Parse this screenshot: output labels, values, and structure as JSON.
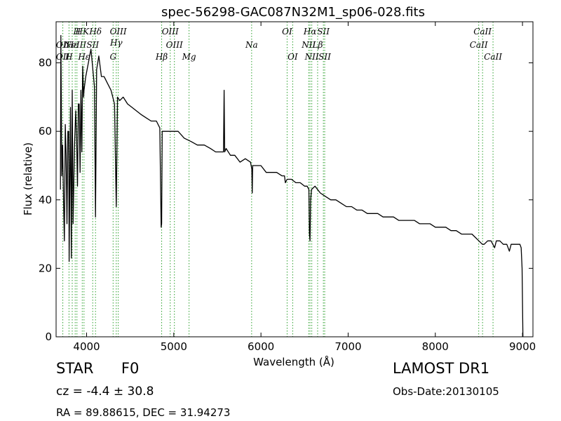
{
  "chart_data": {
    "type": "line",
    "title": "spec-56298-GAC087N32M1_sp06-028.fits",
    "xlabel": "Wavelength (Å)",
    "ylabel": "Flux (relative)",
    "xlim": [
      3650,
      9120
    ],
    "ylim": [
      0,
      92
    ],
    "xticks": [
      4000,
      5000,
      6000,
      7000,
      8000,
      9000
    ],
    "yticks": [
      0,
      20,
      40,
      60,
      80
    ],
    "grid": false,
    "series": [
      {
        "color": "#000000",
        "x": [
          3700,
          3705,
          3715,
          3725,
          3735,
          3745,
          3755,
          3765,
          3775,
          3785,
          3795,
          3800,
          3815,
          3825,
          3835,
          3845,
          3860,
          3875,
          3885,
          3895,
          3905,
          3915,
          3925,
          3935,
          3945,
          3955,
          3965,
          3970,
          3990,
          4020,
          4050,
          4090,
          4102,
          4115,
          4140,
          4170,
          4200,
          4240,
          4280,
          4320,
          4340,
          4355,
          4380,
          4420,
          4470,
          4520,
          4570,
          4620,
          4680,
          4740,
          4800,
          4840,
          4855,
          4861,
          4867,
          4880,
          4920,
          4980,
          5050,
          5120,
          5200,
          5270,
          5350,
          5420,
          5480,
          5540,
          5570,
          5577,
          5584,
          5600,
          5650,
          5700,
          5760,
          5820,
          5880,
          5895,
          5900,
          5905,
          5940,
          6000,
          6060,
          6120,
          6180,
          6240,
          6270,
          6280,
          6300,
          6350,
          6400,
          6450,
          6500,
          6530,
          6550,
          6556,
          6563,
          6570,
          6580,
          6620,
          6680,
          6740,
          6800,
          6860,
          6920,
          6980,
          7040,
          7100,
          7160,
          7220,
          7280,
          7340,
          7400,
          7460,
          7520,
          7580,
          7640,
          7700,
          7760,
          7820,
          7880,
          7940,
          8000,
          8060,
          8120,
          8180,
          8240,
          8300,
          8360,
          8420,
          8460,
          8500,
          8540,
          8560,
          8600,
          8640,
          8680,
          8700,
          8740,
          8780,
          8820,
          8850,
          8870,
          8900,
          8940,
          8970,
          8985,
          8995,
          9005
        ],
        "y": [
          43,
          88,
          47,
          56,
          40,
          28,
          62,
          53,
          33,
          60,
          60,
          22,
          67,
          23,
          72,
          33,
          55,
          66,
          58,
          44,
          68,
          68,
          48,
          72,
          54,
          79,
          70,
          72,
          76,
          80,
          84,
          73,
          35,
          78,
          82,
          76,
          76,
          74,
          72,
          68,
          38,
          70,
          69,
          70,
          68,
          67,
          66,
          65,
          64,
          63,
          63,
          61,
          32,
          33,
          60,
          60,
          60,
          60,
          60,
          58,
          57,
          56,
          56,
          55,
          54,
          54,
          54,
          72,
          54,
          55,
          53,
          53,
          51,
          52,
          51,
          49,
          42,
          50,
          50,
          50,
          48,
          48,
          48,
          47,
          47,
          45,
          46,
          46,
          45,
          45,
          44,
          44,
          43,
          30,
          28,
          40,
          43,
          44,
          42,
          41,
          40,
          40,
          39,
          38,
          38,
          37,
          37,
          36,
          36,
          36,
          35,
          35,
          35,
          34,
          34,
          34,
          34,
          33,
          33,
          33,
          32,
          32,
          32,
          31,
          31,
          30,
          30,
          30,
          29,
          28,
          27,
          27,
          28,
          28,
          26,
          28,
          28,
          27,
          27,
          25,
          27,
          27,
          27,
          27,
          26,
          20,
          0
        ]
      }
    ],
    "line_markers": [
      {
        "label": "H",
        "x": 3889,
        "row": 0
      },
      {
        "label": "HK",
        "x": 3950,
        "row": 0
      },
      {
        "label": "Hδ",
        "x": 4102,
        "row": 0
      },
      {
        "label": "OIII",
        "x": 4363,
        "row": 0
      },
      {
        "label": "OIII",
        "x": 4959,
        "row": 0
      },
      {
        "label": "OI",
        "x": 6300,
        "row": 0
      },
      {
        "label": "Hα",
        "x": 6563,
        "row": 0
      },
      {
        "label": "SII",
        "x": 6716,
        "row": 0
      },
      {
        "label": "CaII",
        "x": 8542,
        "row": 0
      },
      {
        "label": "Hγ",
        "x": 4340,
        "row": 1
      },
      {
        "label": "OIII",
        "x": 5007,
        "row": 2
      },
      {
        "label": "Na",
        "x": 5893,
        "row": 2
      },
      {
        "label": "NII",
        "x": 6548,
        "row": 2
      },
      {
        "label": "Lβ",
        "x": 6650,
        "row": 2
      },
      {
        "label": "CaII",
        "x": 8498,
        "row": 2
      },
      {
        "label": "OII",
        "x": 3727,
        "row": 2
      },
      {
        "label": "Hε",
        "x": 3835,
        "row": 2
      },
      {
        "label": "NeIII",
        "x": 3869,
        "row": 2
      },
      {
        "label": "SII",
        "x": 4070,
        "row": 2
      },
      {
        "label": "OII",
        "x": 3727,
        "row": 3
      },
      {
        "label": "H",
        "x": 3798,
        "row": 3
      },
      {
        "label": "Hε",
        "x": 3970,
        "row": 3
      },
      {
        "label": "G",
        "x": 4304,
        "row": 3
      },
      {
        "label": "Hβ",
        "x": 4861,
        "row": 3
      },
      {
        "label": "Mg",
        "x": 5175,
        "row": 3
      },
      {
        "label": "OI",
        "x": 6364,
        "row": 3
      },
      {
        "label": "NII",
        "x": 6583,
        "row": 3
      },
      {
        "label": "SII",
        "x": 6731,
        "row": 3
      },
      {
        "label": "CaII",
        "x": 8662,
        "row": 3
      }
    ]
  },
  "info": {
    "class": "STAR",
    "subclass": "F0",
    "survey": "LAMOST DR1",
    "cz": "cz = -4.4  ± 30.8",
    "obs_date": "Obs-Date:20130105",
    "coords": "RA = 89.88615, DEC = 31.94273"
  },
  "colors": {
    "marker": "#2ca02c",
    "line": "#000000"
  }
}
